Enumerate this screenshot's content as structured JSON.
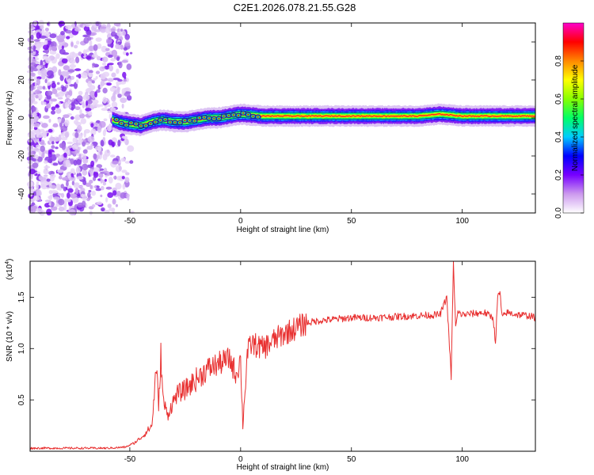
{
  "title": "C2E1.2026.078.21.55.G28",
  "chart_data": [
    {
      "type": "heatmap",
      "xlabel": "Height of straight line (km)",
      "ylabel": "Frequency (Hz)",
      "xlim": [
        -95,
        133
      ],
      "ylim": [
        -50,
        50
      ],
      "xticks": [
        -50,
        0,
        50,
        100
      ],
      "yticks": [
        -40,
        -20,
        0,
        20,
        40
      ],
      "colorbar": {
        "label": "Normalized spectral amplitude",
        "range": [
          0,
          1
        ],
        "ticks": [
          "0.0",
          "0.2",
          "0.4",
          "0.6",
          "0.8"
        ],
        "colors": [
          "#ffffff",
          "#cc99ee",
          "#7700ff",
          "#0000ff",
          "#00ccff",
          "#00ff66",
          "#88ff00",
          "#ffff00",
          "#ff8800",
          "#ff0000",
          "#ff00cc"
        ]
      },
      "ridge": {
        "x": [
          -58,
          -52,
          -45,
          -40,
          -35,
          -30,
          -25,
          -20,
          -15,
          -10,
          -5,
          0,
          10,
          20,
          40,
          60,
          80,
          90,
          100,
          110,
          120,
          133
        ],
        "y": [
          -1,
          -3,
          -4,
          -2,
          -1,
          -2,
          -2,
          -1,
          0,
          0,
          1,
          2,
          1,
          1,
          1,
          1,
          1,
          2,
          1,
          1,
          1,
          1
        ]
      },
      "noise_region_x": [
        -95,
        -53
      ]
    },
    {
      "type": "line",
      "xlabel": "Height of straight line (km)",
      "ylabel": "SNR (10 * v/v)",
      "yscale_label": "(x10",
      "yscale_exp": "4",
      "scale_factor": 10000,
      "xlim": [
        -95,
        133
      ],
      "ylim": [
        0,
        1.85
      ],
      "xticks": [
        -50,
        0,
        50,
        100
      ],
      "yticks": [
        "0.5",
        "1.0",
        "1.5"
      ],
      "series": [
        {
          "color": "#e83030",
          "x": [
            -95,
            -60,
            -52,
            -48,
            -44,
            -40,
            -38,
            -37,
            -36,
            -35,
            -33,
            -31,
            -29,
            -25,
            -20,
            -15,
            -10,
            -5,
            -2,
            0,
            1,
            3,
            5,
            10,
            15,
            20,
            25,
            30,
            35,
            40,
            50,
            60,
            70,
            80,
            90,
            93,
            95,
            96,
            97,
            98,
            100,
            105,
            110,
            114,
            115,
            116,
            117,
            118,
            120,
            125,
            130,
            133
          ],
          "y": [
            0.03,
            0.03,
            0.04,
            0.08,
            0.15,
            0.25,
            0.85,
            0.4,
            0.95,
            0.5,
            0.35,
            0.45,
            0.55,
            0.6,
            0.7,
            0.8,
            0.85,
            0.9,
            0.75,
            0.9,
            0.25,
            0.95,
            1.05,
            1.0,
            1.08,
            1.15,
            1.2,
            1.25,
            1.27,
            1.28,
            1.3,
            1.3,
            1.31,
            1.32,
            1.33,
            1.5,
            0.72,
            1.85,
            1.2,
            1.35,
            1.33,
            1.34,
            1.35,
            1.3,
            1.05,
            1.5,
            1.55,
            1.3,
            1.35,
            1.33,
            1.32,
            1.3
          ]
        }
      ]
    }
  ]
}
